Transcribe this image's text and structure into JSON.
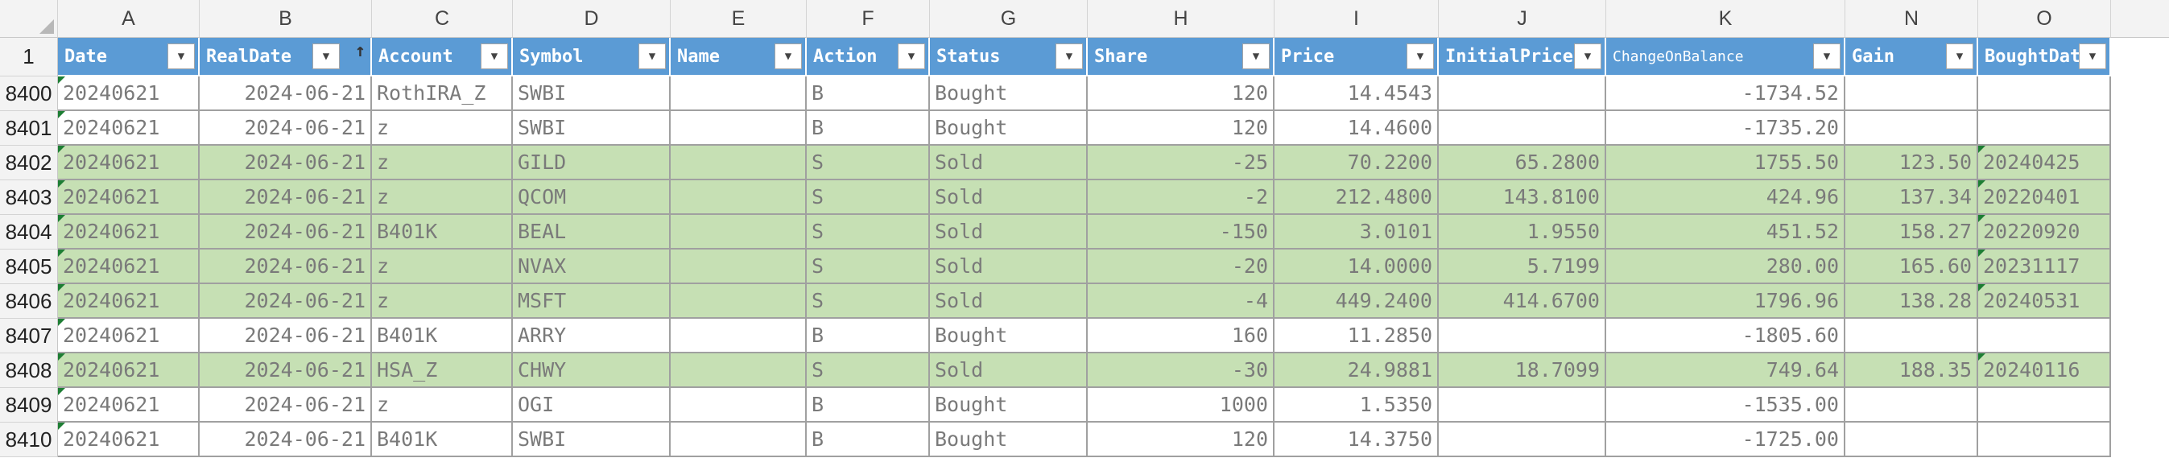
{
  "sheet": {
    "col_letters": [
      "A",
      "B",
      "C",
      "D",
      "E",
      "F",
      "G",
      "H",
      "I",
      "J",
      "K",
      "N",
      "O"
    ],
    "header_row_num": "1",
    "headers": [
      "Date",
      "RealDate",
      "Account",
      "Symbol",
      "Name",
      "Action",
      "Status",
      "Share",
      "Price",
      "InitialPrice",
      "ChangeOnBalance",
      "Gain",
      "BoughtDate"
    ],
    "colors": {
      "header_bg": "#5b9bd5",
      "sold_row": "#c6e0b4",
      "header_text": "#ffffff"
    },
    "rows": [
      {
        "num": "8400",
        "cells": [
          "20240621",
          "2024-06-21",
          "RothIRA_Z",
          "SWBI",
          "",
          "B",
          "Bought",
          "120",
          "14.4543",
          "",
          "-1734.52",
          "",
          ""
        ],
        "status": "bought"
      },
      {
        "num": "8401",
        "cells": [
          "20240621",
          "2024-06-21",
          "z",
          "SWBI",
          "",
          "B",
          "Bought",
          "120",
          "14.4600",
          "",
          "-1735.20",
          "",
          ""
        ],
        "status": "bought"
      },
      {
        "num": "8402",
        "cells": [
          "20240621",
          "2024-06-21",
          "z",
          "GILD",
          "",
          "S",
          "Sold",
          "-25",
          "70.2200",
          "65.2800",
          "1755.50",
          "123.50",
          "20240425"
        ],
        "status": "sold"
      },
      {
        "num": "8403",
        "cells": [
          "20240621",
          "2024-06-21",
          "z",
          "QCOM",
          "",
          "S",
          "Sold",
          "-2",
          "212.4800",
          "143.8100",
          "424.96",
          "137.34",
          "20220401"
        ],
        "status": "sold"
      },
      {
        "num": "8404",
        "cells": [
          "20240621",
          "2024-06-21",
          "B401K",
          "BEAL",
          "",
          "S",
          "Sold",
          "-150",
          "3.0101",
          "1.9550",
          "451.52",
          "158.27",
          "20220920"
        ],
        "status": "sold"
      },
      {
        "num": "8405",
        "cells": [
          "20240621",
          "2024-06-21",
          "z",
          "NVAX",
          "",
          "S",
          "Sold",
          "-20",
          "14.0000",
          "5.7199",
          "280.00",
          "165.60",
          "20231117"
        ],
        "status": "sold"
      },
      {
        "num": "8406",
        "cells": [
          "20240621",
          "2024-06-21",
          "z",
          "MSFT",
          "",
          "S",
          "Sold",
          "-4",
          "449.2400",
          "414.6700",
          "1796.96",
          "138.28",
          "20240531"
        ],
        "status": "sold"
      },
      {
        "num": "8407",
        "cells": [
          "20240621",
          "2024-06-21",
          "B401K",
          "ARRY",
          "",
          "B",
          "Bought",
          "160",
          "11.2850",
          "",
          "-1805.60",
          "",
          ""
        ],
        "status": "bought"
      },
      {
        "num": "8408",
        "cells": [
          "20240621",
          "2024-06-21",
          "HSA_Z",
          "CHWY",
          "",
          "S",
          "Sold",
          "-30",
          "24.9881",
          "18.7099",
          "749.64",
          "188.35",
          "20240116"
        ],
        "status": "sold"
      },
      {
        "num": "8409",
        "cells": [
          "20240621",
          "2024-06-21",
          "z",
          "OGI",
          "",
          "B",
          "Bought",
          "1000",
          "1.5350",
          "",
          "-1535.00",
          "",
          ""
        ],
        "status": "bought"
      },
      {
        "num": "8410",
        "cells": [
          "20240621",
          "2024-06-21",
          "B401K",
          "SWBI",
          "",
          "B",
          "Bought",
          "120",
          "14.3750",
          "",
          "-1725.00",
          "",
          ""
        ],
        "status": "bought"
      }
    ]
  }
}
